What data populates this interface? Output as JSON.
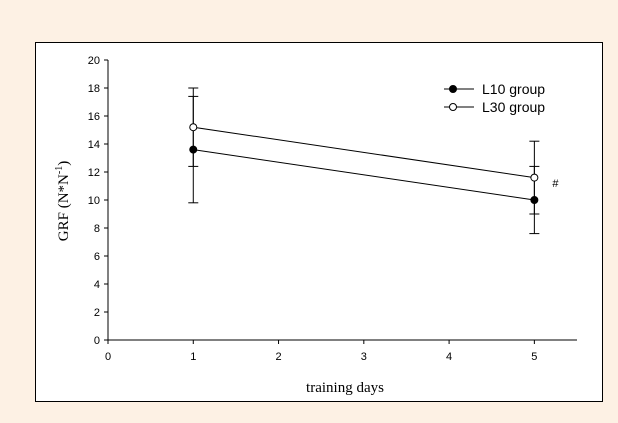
{
  "chart_data": {
    "type": "line",
    "xlabel": "training days",
    "ylabel_main": "GRF (N*N",
    "ylabel_sup": "-1",
    "ylabel_close": ")",
    "xlim": [
      0,
      5.5
    ],
    "ylim": [
      0,
      20
    ],
    "xticks": [
      0,
      1,
      2,
      3,
      4,
      5
    ],
    "yticks": [
      0,
      2,
      4,
      6,
      8,
      10,
      12,
      14,
      16,
      18,
      20
    ],
    "grid": false,
    "legend_position": "top-right",
    "series": [
      {
        "name": "L10 group",
        "marker": "filled-circle",
        "points": [
          {
            "x": 1,
            "y": 13.6,
            "err_low": 9.8,
            "err_high": 17.4
          },
          {
            "x": 5,
            "y": 10.0,
            "err_low": 7.6,
            "err_high": 12.4
          }
        ]
      },
      {
        "name": "L30 group",
        "marker": "open-circle",
        "points": [
          {
            "x": 1,
            "y": 15.2,
            "err_low": 12.4,
            "err_high": 18.0
          },
          {
            "x": 5,
            "y": 11.6,
            "err_low": 9.0,
            "err_high": 14.2
          }
        ]
      }
    ],
    "annotations": [
      {
        "text": "#",
        "x": 5,
        "y": 11.2
      }
    ]
  }
}
